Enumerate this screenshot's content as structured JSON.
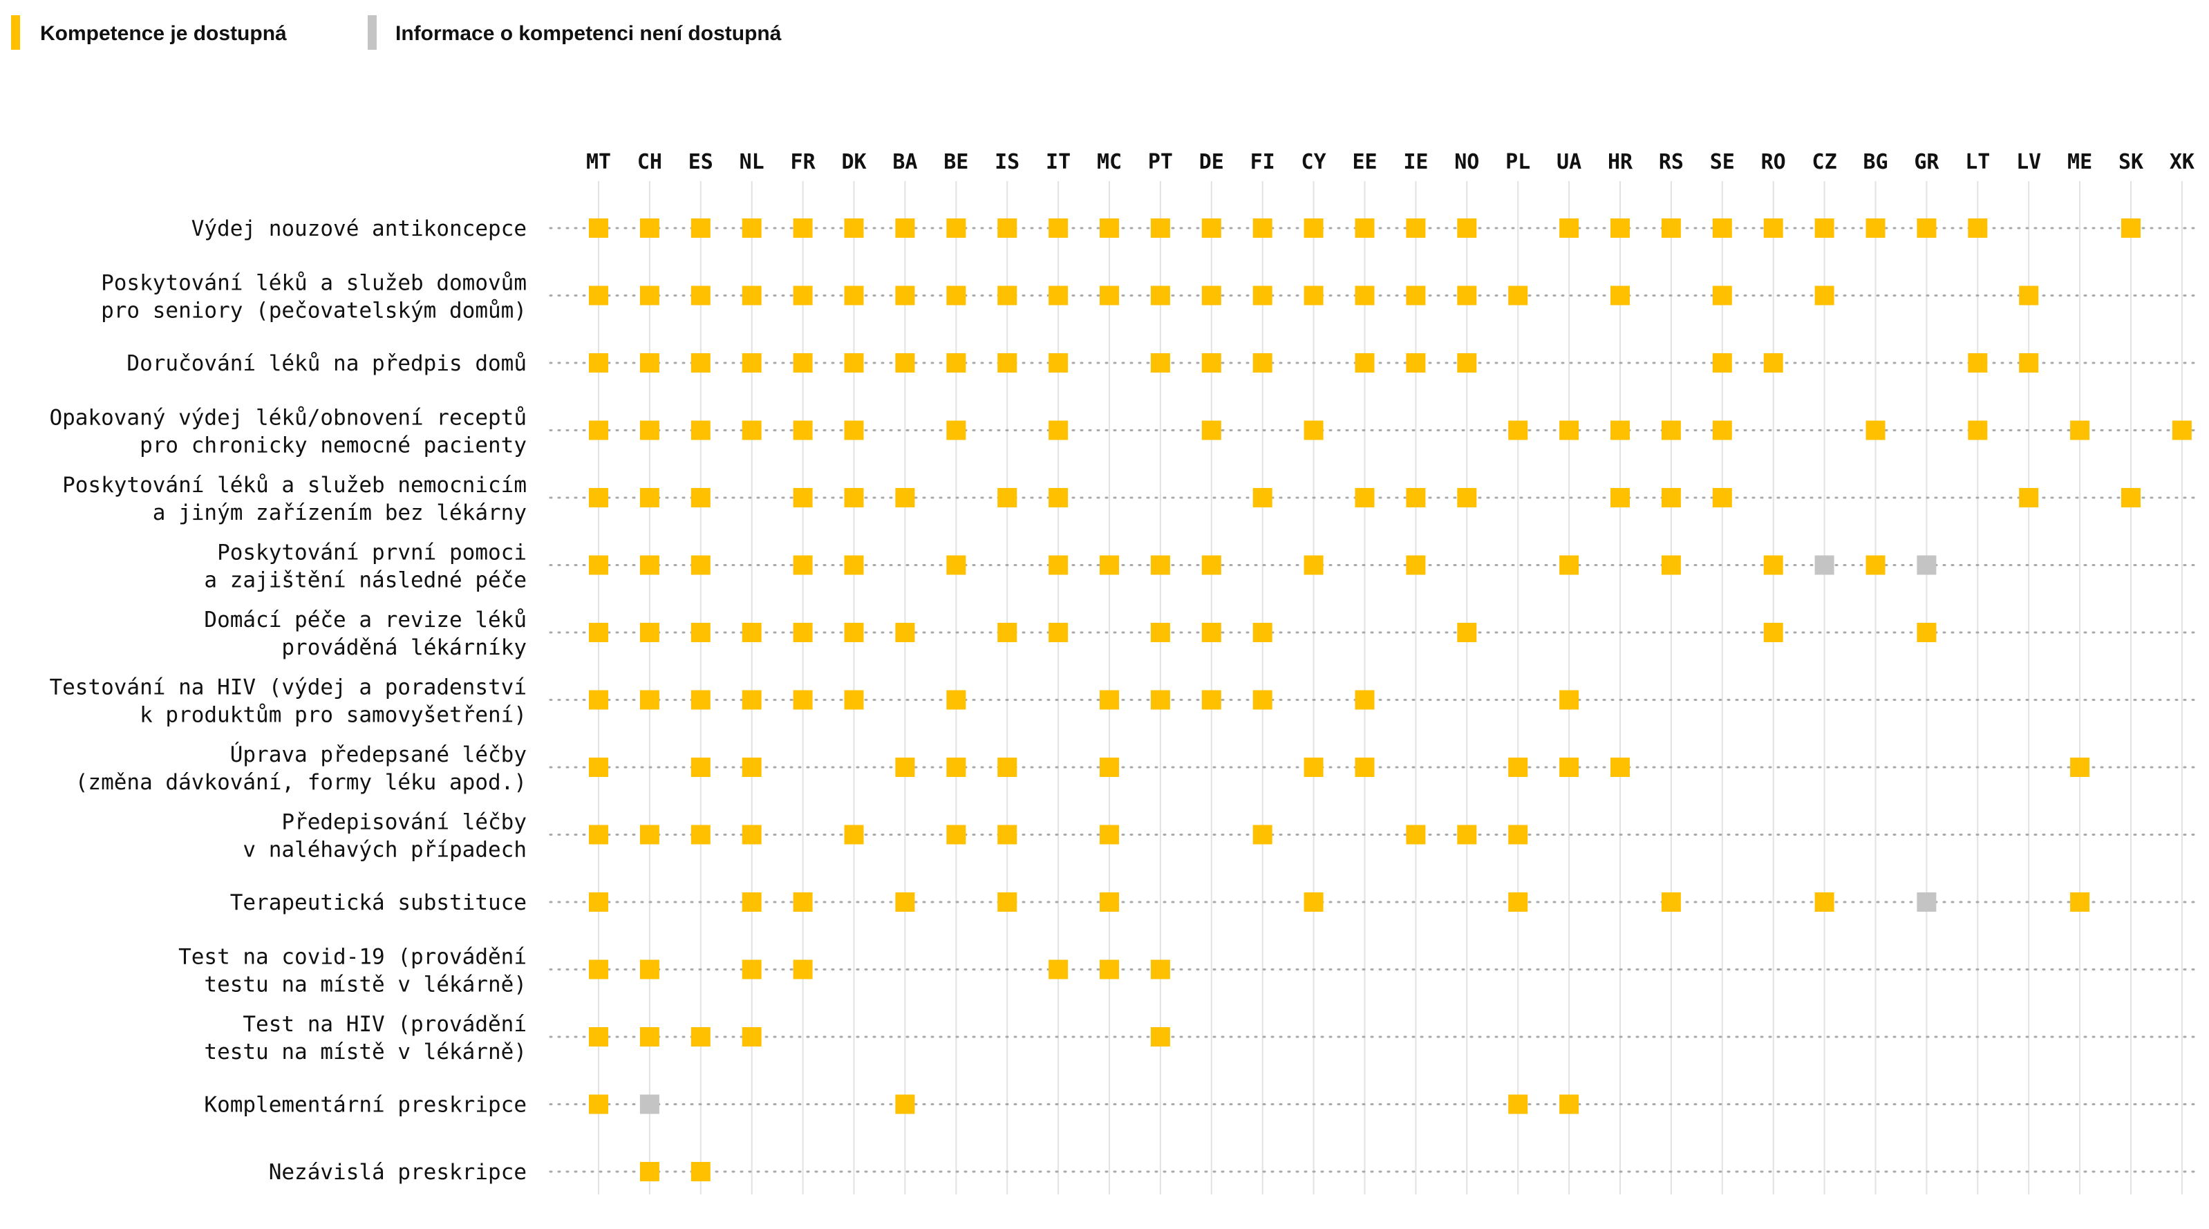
{
  "chart_data": {
    "type": "heatmap",
    "legend": {
      "placement": "top-left",
      "items": [
        {
          "key": "Y",
          "label": "Kompetence je dostupná",
          "color": "#FFC000"
        },
        {
          "key": "G",
          "label": "Informace o kompetenci není dostupná",
          "color": "#C4C4C4"
        }
      ]
    },
    "columns": [
      "MT",
      "CH",
      "ES",
      "NL",
      "FR",
      "DK",
      "BA",
      "BE",
      "IS",
      "IT",
      "MC",
      "PT",
      "DE",
      "FI",
      "CY",
      "EE",
      "IE",
      "NO",
      "PL",
      "UA",
      "HR",
      "RS",
      "SE",
      "RO",
      "CZ",
      "BG",
      "GR",
      "LT",
      "LV",
      "ME",
      "SK",
      "XK"
    ],
    "rows": [
      {
        "label": [
          "Výdej nouzové antikoncepce"
        ],
        "values": "YYYYYYYYYYYYYYYYYY.YYYYYYYYY..Y."
      },
      {
        "label": [
          "Poskytování léků a služeb domovům",
          "pro seniory (pečovatelským domům)"
        ],
        "values": "YYYYYYYYYYYYYYYYYYY.Y.Y.Y...Y..."
      },
      {
        "label": [
          "Doručování léků na předpis domů"
        ],
        "values": "YYYYYYYYYY.YYY.YYY....YY...YY..."
      },
      {
        "label": [
          "Opakovaný výdej léků/obnovení receptů",
          "pro chronicky nemocné pacienty"
        ],
        "values": "YYYYYY.Y.Y..Y.Y...YYYYY..Y.Y.Y.Y"
      },
      {
        "label": [
          "Poskytování léků a služeb nemocnicím",
          "a jiným zařízením bez lékárny"
        ],
        "values": "YYY.YYY.YY...Y.YYY..YYY.....Y.Y."
      },
      {
        "label": [
          "Poskytování první pomoci",
          "a zajištění následné péče"
        ],
        "values": "YYY.YY.Y.YYYY.Y.Y..Y.Y.YGYG...."
      },
      {
        "label": [
          "Domácí péče a revize léků",
          "prováděná lékárníky"
        ],
        "values": "YYYYYYY.YY.YYY...Y.....Y..Y....."
      },
      {
        "label": [
          "Testování na HIV (výdej a poradenství",
          "k produktům pro samovyšetření)"
        ],
        "values": "YYYYYY.Y..YYYY.Y...Y............"
      },
      {
        "label": [
          "Úprava předepsané léčby",
          "(změna dávkování, formy léku apod.)"
        ],
        "values": "Y.YY..YYY.Y...YY..YYY........Y.."
      },
      {
        "label": [
          "Předepisování léčby",
          "v naléhavých případech"
        ],
        "values": "YYYY.Y.YY.Y..Y..YYY............."
      },
      {
        "label": [
          "Terapeutická substituce"
        ],
        "values": "Y..YY.Y.Y.Y...Y...Y..Y..Y.G..Y.."
      },
      {
        "label": [
          "Test na covid-19 (provádění",
          "testu na místě v lékárně)"
        ],
        "values": "YY.YY....YYY...................."
      },
      {
        "label": [
          "Test na HIV (provádění",
          "testu na místě v lékárně)"
        ],
        "values": "YYYY.......Y...................."
      },
      {
        "label": [
          "Komplementární preskripce"
        ],
        "values": "YG....Y...........YY............"
      },
      {
        "label": [
          "Nezávislá preskripce"
        ],
        "values": ".YY............................."
      }
    ]
  }
}
